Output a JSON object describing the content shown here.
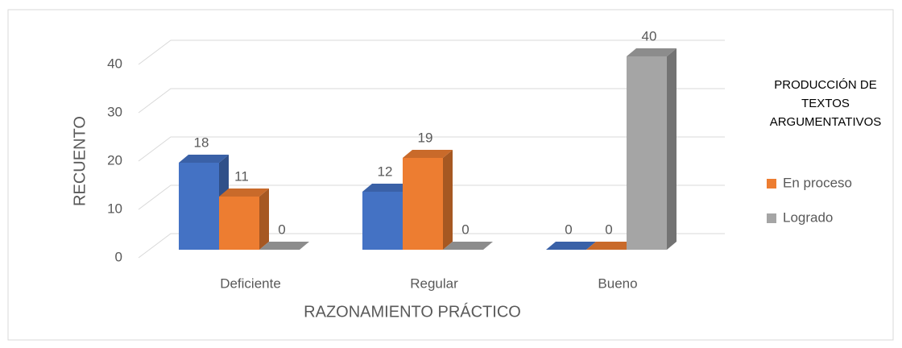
{
  "chart_data": {
    "type": "bar3d",
    "categories": [
      "Deficiente",
      "Regular",
      "Bueno"
    ],
    "series": [
      {
        "color": "#4472c4",
        "values": [
          18,
          12,
          0
        ]
      },
      {
        "name": "En proceso",
        "color": "#ed7d31",
        "values": [
          11,
          19,
          0
        ]
      },
      {
        "name": "Logrado",
        "color": "#a5a5a5",
        "values": [
          0,
          0,
          40
        ]
      }
    ],
    "ylim": [
      0,
      40
    ],
    "yticks": [
      0,
      10,
      20,
      30,
      40
    ],
    "grid": true,
    "y_label": "RECUENTO",
    "x_label": "RAZONAMIENTO PRÁCTICO",
    "legend_title": "PRODUCCIÓN DE TEXTOS ARGUMENTATIVOS",
    "legend": "right"
  }
}
